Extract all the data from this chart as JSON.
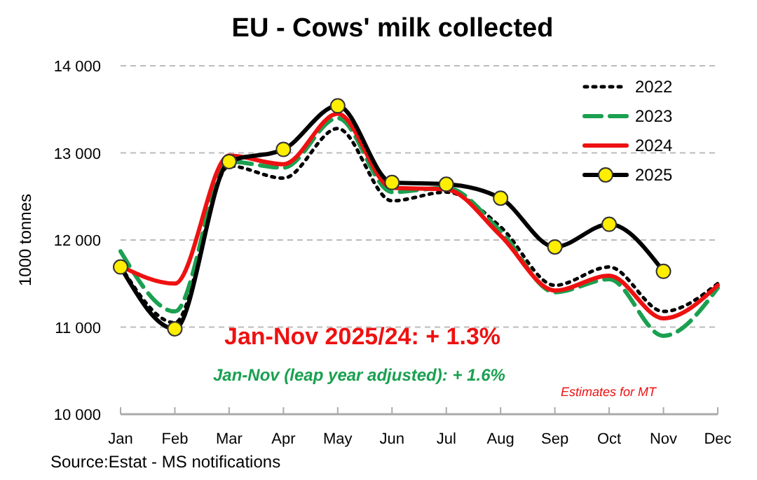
{
  "chart_data": {
    "type": "line",
    "title": "EU - Cows' milk collected",
    "ylabel": "1000 tonnes",
    "categories": [
      "Jan",
      "Feb",
      "Mar",
      "Apr",
      "May",
      "Jun",
      "Jul",
      "Aug",
      "Sep",
      "Oct",
      "Nov",
      "Dec"
    ],
    "series": [
      {
        "name": "2022",
        "color": "#000000",
        "line_style": "dotted",
        "values": [
          11700,
          11050,
          12850,
          12710,
          13280,
          12450,
          12550,
          12150,
          11480,
          11690,
          11180,
          11500
        ]
      },
      {
        "name": "2023",
        "color": "#1aa050",
        "line_style": "dashed",
        "values": [
          11870,
          11180,
          12900,
          12830,
          13400,
          12550,
          12600,
          12100,
          11400,
          11550,
          10900,
          11450
        ]
      },
      {
        "name": "2024",
        "color": "#ee1111",
        "line_style": "solid",
        "values": [
          11700,
          11500,
          12970,
          12870,
          13450,
          12600,
          12580,
          12050,
          11420,
          11590,
          11100,
          11480
        ]
      },
      {
        "name": "2025",
        "color": "#000000",
        "line_style": "solid",
        "marker": "circle",
        "values": [
          11690,
          10980,
          12900,
          13040,
          13540,
          12660,
          12640,
          12480,
          11920,
          12180,
          11640,
          null
        ]
      }
    ],
    "ylim": [
      10000,
      14000
    ],
    "yticks": [
      {
        "value": 10000,
        "label": "10 000"
      },
      {
        "value": 11000,
        "label": "11 000"
      },
      {
        "value": 12000,
        "label": "12 000"
      },
      {
        "value": 13000,
        "label": "13 000"
      },
      {
        "value": 14000,
        "label": "14 000"
      }
    ],
    "grid": "y",
    "legend": "top right",
    "annotations": [
      "Jan-Nov 2025/24: + 1.3%",
      "Jan-Nov (leap year adjusted): + 1.6%",
      "Estimates for MT",
      "Source:Estat - MS notifications"
    ]
  }
}
